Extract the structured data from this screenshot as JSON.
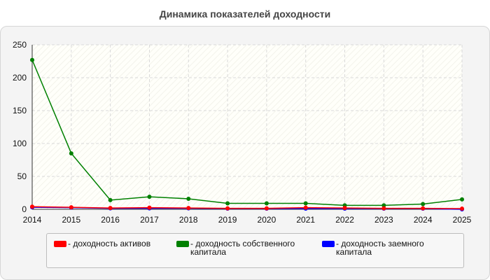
{
  "chart_data": {
    "type": "line",
    "title": "Динамика показателей доходности",
    "x": [
      "2014",
      "2015",
      "2016",
      "2017",
      "2018",
      "2019",
      "2020",
      "2021",
      "2022",
      "2023",
      "2024",
      "2025"
    ],
    "series": [
      {
        "name": "- доходность активов",
        "color": "#ff0000",
        "values": [
          4,
          3,
          2,
          2.5,
          2,
          1.5,
          1.5,
          2.5,
          2,
          1.5,
          1.5,
          1
        ]
      },
      {
        "name": "- доходность собственного\nкапитала",
        "color": "#008000",
        "values": [
          227,
          85,
          14,
          19,
          16,
          9,
          9,
          9,
          6,
          6,
          8,
          15
        ]
      },
      {
        "name": "- доходность заемного\nкапитала",
        "color": "#0000ff",
        "values": [
          3,
          2.5,
          1.5,
          1.5,
          1.5,
          1,
          1,
          1,
          1,
          1,
          1,
          0
        ]
      }
    ],
    "ylim": [
      0,
      250
    ],
    "yticks": [
      0,
      50,
      100,
      150,
      200,
      250
    ],
    "xlabel": "",
    "ylabel": "",
    "grid": true,
    "legend_position": "bottom"
  }
}
